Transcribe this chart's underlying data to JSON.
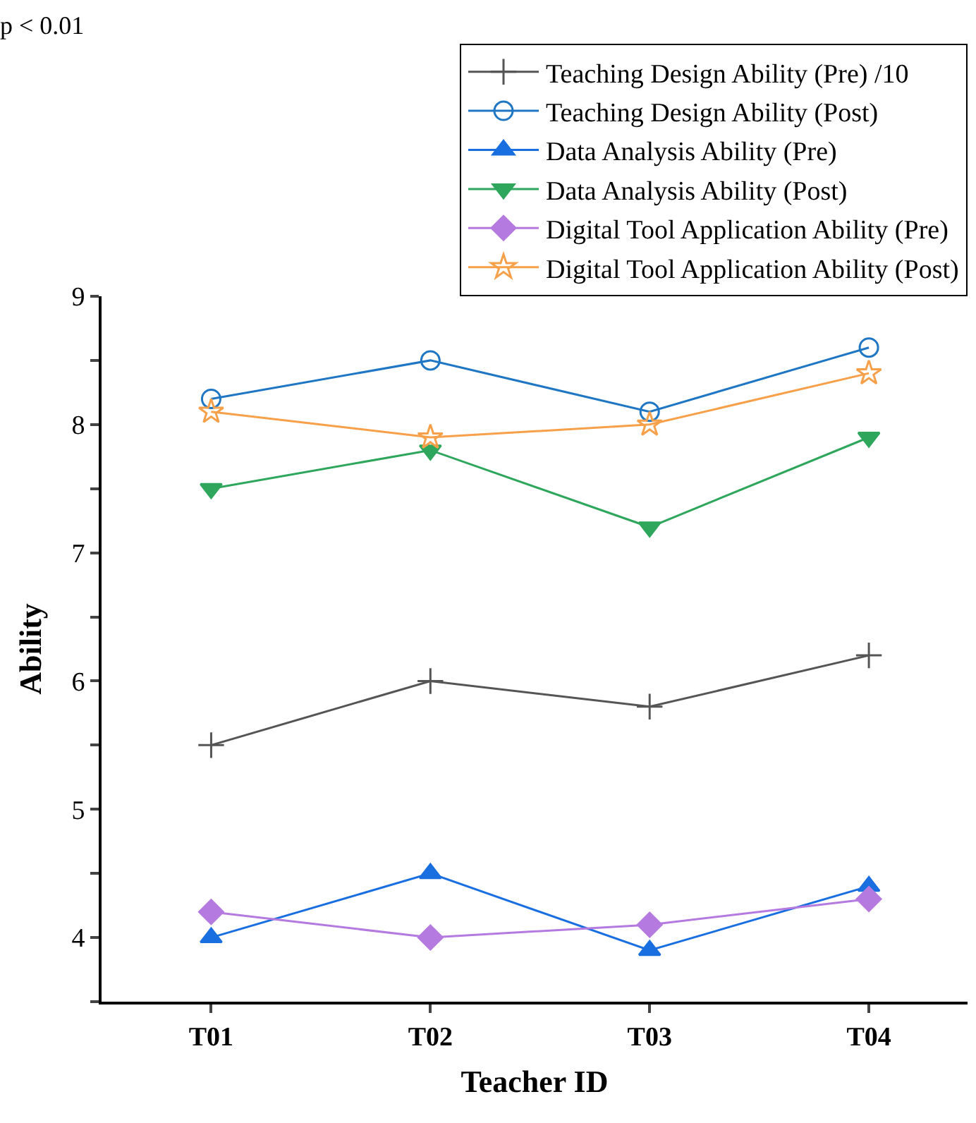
{
  "chart_data": {
    "type": "line",
    "categories": [
      "T01",
      "T02",
      "T03",
      "T04"
    ],
    "xlabel": "Teacher ID",
    "ylabel": "Ability",
    "annotations": [
      "p < 0.01"
    ],
    "ylim": [
      3.5,
      9
    ],
    "yticks": [
      {
        "value": 3.5,
        "label": null
      },
      4,
      {
        "value": 4.5,
        "label": null
      },
      5,
      {
        "value": 5.5,
        "label": null
      },
      6,
      {
        "value": 6.5,
        "label": null
      },
      7,
      {
        "value": 7.5,
        "label": null
      },
      8,
      {
        "value": 8.5,
        "label": null
      },
      9
    ],
    "legend": "top right",
    "line_style": "solid",
    "series": [
      {
        "name": "Teaching Design Ability (Pre) /10",
        "color": "#555555",
        "marker": "cross",
        "values": [
          5.5,
          6.0,
          5.8,
          6.2
        ]
      },
      {
        "name": "Teaching Design Ability (Post)",
        "color": "#1f77c4",
        "marker": "circle",
        "values": [
          8.2,
          8.5,
          8.1,
          8.6
        ]
      },
      {
        "name": "Data Analysis Ability (Pre)",
        "color": "#1a6fe0",
        "marker": "triangle",
        "values": [
          4.0,
          4.5,
          3.9,
          4.4
        ]
      },
      {
        "name": "Data Analysis Ability (Post)",
        "color": "#2ea65c",
        "marker": "triangle-down",
        "values": [
          7.5,
          7.8,
          7.2,
          7.9
        ]
      },
      {
        "name": "Digital Tool Application Ability (Pre)",
        "color": "#b57ae0",
        "marker": "diamond",
        "values": [
          4.2,
          4.0,
          4.1,
          4.3
        ]
      },
      {
        "name": "Digital Tool Application Ability (Post)",
        "color": "#f7a04a",
        "marker": "star",
        "values": [
          8.1,
          7.9,
          8.0,
          8.4
        ]
      }
    ]
  }
}
